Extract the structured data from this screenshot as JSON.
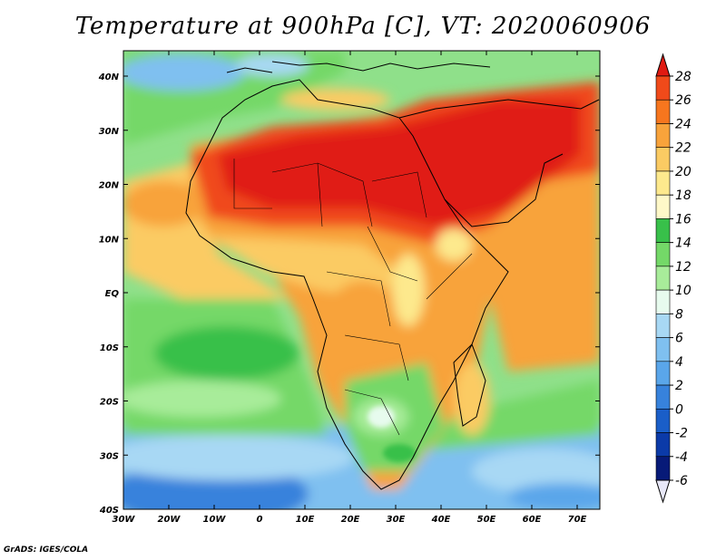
{
  "title": "Temperature at 900hPa [C], VT: 2020060906",
  "credit": "GrADS: IGES/COLA",
  "lon_ticks": [
    "30W",
    "20W",
    "10W",
    "0",
    "10E",
    "20E",
    "30E",
    "40E",
    "50E",
    "60E",
    "70E"
  ],
  "lat_ticks": [
    "40N",
    "30N",
    "20N",
    "10N",
    "EQ",
    "10S",
    "20S",
    "30S",
    "40S"
  ],
  "colorbar": {
    "labels": [
      "28",
      "26",
      "24",
      "22",
      "20",
      "18",
      "16",
      "14",
      "12",
      "10",
      "8",
      "6",
      "4",
      "2",
      "0",
      "-2",
      "-4",
      "-6"
    ],
    "colors": [
      "#e01a12",
      "#f04a1a",
      "#f7761e",
      "#f8a33b",
      "#fbcb63",
      "#fde98d",
      "#fef8c8",
      "#38c04a",
      "#74d868",
      "#a8ec9a",
      "#e7fbee",
      "#a8d8f4",
      "#7fc0f0",
      "#5aa6ea",
      "#3782dc",
      "#1a5ec8",
      "#0b3aa8",
      "#071a78"
    ]
  }
}
